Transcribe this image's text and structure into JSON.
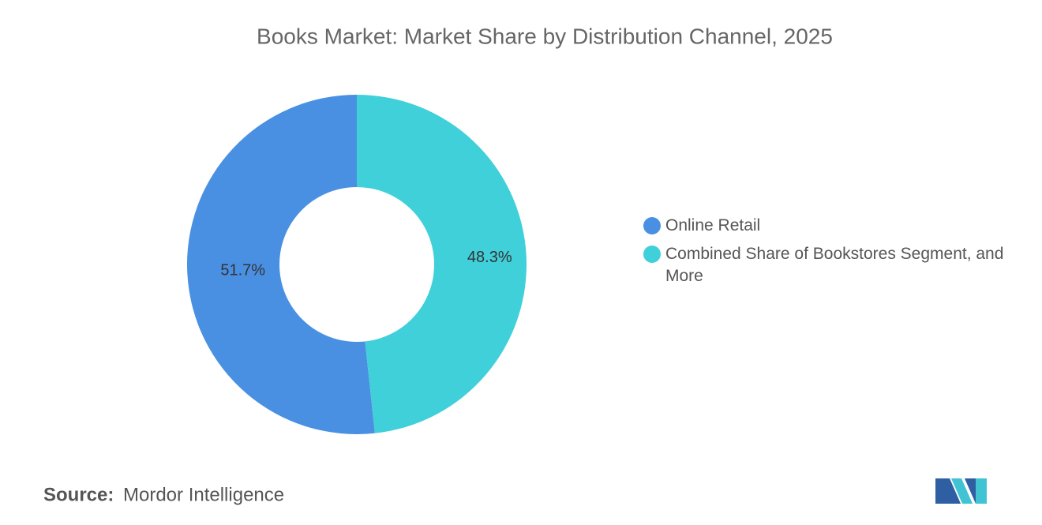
{
  "chart_data": {
    "type": "donut",
    "title": "Books Market: Market Share by Distribution Channel, 2025",
    "series": [
      {
        "name": "Online Retail",
        "color": "#4a90e2",
        "values": [
          51.7
        ],
        "value_labels": [
          "51.7%"
        ]
      },
      {
        "name": "Combined Share of Bookstores Segment, and More",
        "color": "#40d0da",
        "values": [
          48.3
        ],
        "value_labels": [
          "48.3%"
        ]
      }
    ],
    "legend": "right",
    "source_label": "Source:",
    "source": "Mordor Intelligence"
  }
}
